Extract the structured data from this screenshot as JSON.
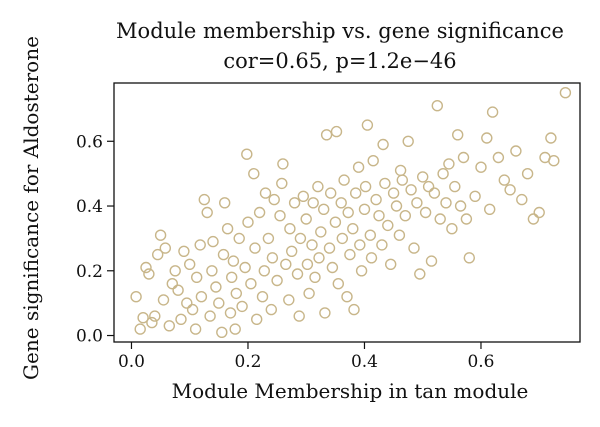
{
  "chart_data": {
    "type": "scatter",
    "title": "Module membership vs. gene significance",
    "subtitle": "cor=0.65, p=1.2e−46",
    "xlabel": "Module Membership in tan module",
    "ylabel": "Gene significance for Aldosterone",
    "xlim": [
      -0.03,
      0.77
    ],
    "ylim": [
      -0.02,
      0.78
    ],
    "xticks": [
      0.0,
      0.2,
      0.4,
      0.6
    ],
    "xtick_labels": [
      "0.0",
      "0.2",
      "0.4",
      "0.6"
    ],
    "yticks": [
      0.0,
      0.2,
      0.4,
      0.6
    ],
    "ytick_labels": [
      "0.0",
      "0.2",
      "0.4",
      "0.6"
    ],
    "grid": false,
    "marker": "open-circle",
    "color": "#c8b68a",
    "series": [
      {
        "points": [
          [
            0.008,
            0.12
          ],
          [
            0.015,
            0.02
          ],
          [
            0.02,
            0.055
          ],
          [
            0.025,
            0.21
          ],
          [
            0.03,
            0.19
          ],
          [
            0.035,
            0.04
          ],
          [
            0.04,
            0.06
          ],
          [
            0.045,
            0.25
          ],
          [
            0.05,
            0.31
          ],
          [
            0.055,
            0.11
          ],
          [
            0.058,
            0.27
          ],
          [
            0.065,
            0.03
          ],
          [
            0.07,
            0.16
          ],
          [
            0.075,
            0.2
          ],
          [
            0.08,
            0.14
          ],
          [
            0.085,
            0.05
          ],
          [
            0.09,
            0.26
          ],
          [
            0.095,
            0.1
          ],
          [
            0.1,
            0.22
          ],
          [
            0.105,
            0.08
          ],
          [
            0.11,
            0.02
          ],
          [
            0.112,
            0.18
          ],
          [
            0.118,
            0.28
          ],
          [
            0.12,
            0.12
          ],
          [
            0.125,
            0.42
          ],
          [
            0.13,
            0.38
          ],
          [
            0.135,
            0.06
          ],
          [
            0.138,
            0.2
          ],
          [
            0.14,
            0.29
          ],
          [
            0.145,
            0.15
          ],
          [
            0.15,
            0.1
          ],
          [
            0.155,
            0.01
          ],
          [
            0.158,
            0.25
          ],
          [
            0.16,
            0.41
          ],
          [
            0.165,
            0.33
          ],
          [
            0.17,
            0.07
          ],
          [
            0.172,
            0.18
          ],
          [
            0.175,
            0.23
          ],
          [
            0.178,
            0.02
          ],
          [
            0.18,
            0.13
          ],
          [
            0.185,
            0.3
          ],
          [
            0.19,
            0.09
          ],
          [
            0.195,
            0.21
          ],
          [
            0.198,
            0.56
          ],
          [
            0.2,
            0.35
          ],
          [
            0.205,
            0.16
          ],
          [
            0.21,
            0.5
          ],
          [
            0.212,
            0.27
          ],
          [
            0.215,
            0.05
          ],
          [
            0.22,
            0.38
          ],
          [
            0.225,
            0.12
          ],
          [
            0.228,
            0.2
          ],
          [
            0.23,
            0.44
          ],
          [
            0.235,
            0.3
          ],
          [
            0.24,
            0.08
          ],
          [
            0.242,
            0.24
          ],
          [
            0.245,
            0.42
          ],
          [
            0.25,
            0.17
          ],
          [
            0.255,
            0.37
          ],
          [
            0.258,
            0.47
          ],
          [
            0.26,
            0.53
          ],
          [
            0.265,
            0.22
          ],
          [
            0.27,
            0.11
          ],
          [
            0.272,
            0.33
          ],
          [
            0.275,
            0.26
          ],
          [
            0.28,
            0.41
          ],
          [
            0.285,
            0.19
          ],
          [
            0.288,
            0.06
          ],
          [
            0.29,
            0.3
          ],
          [
            0.295,
            0.43
          ],
          [
            0.3,
            0.36
          ],
          [
            0.302,
            0.22
          ],
          [
            0.305,
            0.13
          ],
          [
            0.31,
            0.28
          ],
          [
            0.312,
            0.41
          ],
          [
            0.315,
            0.18
          ],
          [
            0.32,
            0.46
          ],
          [
            0.322,
            0.24
          ],
          [
            0.325,
            0.32
          ],
          [
            0.33,
            0.39
          ],
          [
            0.332,
            0.07
          ],
          [
            0.335,
            0.62
          ],
          [
            0.34,
            0.27
          ],
          [
            0.342,
            0.44
          ],
          [
            0.345,
            0.21
          ],
          [
            0.35,
            0.35
          ],
          [
            0.352,
            0.63
          ],
          [
            0.355,
            0.16
          ],
          [
            0.36,
            0.41
          ],
          [
            0.362,
            0.3
          ],
          [
            0.365,
            0.48
          ],
          [
            0.37,
            0.12
          ],
          [
            0.372,
            0.38
          ],
          [
            0.375,
            0.25
          ],
          [
            0.38,
            0.33
          ],
          [
            0.382,
            0.08
          ],
          [
            0.385,
            0.44
          ],
          [
            0.39,
            0.52
          ],
          [
            0.392,
            0.28
          ],
          [
            0.395,
            0.2
          ],
          [
            0.4,
            0.39
          ],
          [
            0.402,
            0.46
          ],
          [
            0.405,
            0.65
          ],
          [
            0.41,
            0.31
          ],
          [
            0.412,
            0.24
          ],
          [
            0.415,
            0.54
          ],
          [
            0.42,
            0.42
          ],
          [
            0.425,
            0.37
          ],
          [
            0.43,
            0.28
          ],
          [
            0.432,
            0.59
          ],
          [
            0.435,
            0.47
          ],
          [
            0.44,
            0.34
          ],
          [
            0.445,
            0.22
          ],
          [
            0.45,
            0.44
          ],
          [
            0.455,
            0.4
          ],
          [
            0.46,
            0.31
          ],
          [
            0.462,
            0.51
          ],
          [
            0.465,
            0.48
          ],
          [
            0.47,
            0.37
          ],
          [
            0.475,
            0.6
          ],
          [
            0.48,
            0.45
          ],
          [
            0.485,
            0.27
          ],
          [
            0.49,
            0.41
          ],
          [
            0.495,
            0.19
          ],
          [
            0.5,
            0.49
          ],
          [
            0.505,
            0.38
          ],
          [
            0.51,
            0.46
          ],
          [
            0.515,
            0.23
          ],
          [
            0.52,
            0.44
          ],
          [
            0.525,
            0.71
          ],
          [
            0.53,
            0.36
          ],
          [
            0.535,
            0.5
          ],
          [
            0.54,
            0.41
          ],
          [
            0.545,
            0.53
          ],
          [
            0.55,
            0.33
          ],
          [
            0.555,
            0.46
          ],
          [
            0.56,
            0.62
          ],
          [
            0.565,
            0.4
          ],
          [
            0.57,
            0.55
          ],
          [
            0.575,
            0.36
          ],
          [
            0.58,
            0.24
          ],
          [
            0.59,
            0.43
          ],
          [
            0.6,
            0.52
          ],
          [
            0.61,
            0.61
          ],
          [
            0.615,
            0.39
          ],
          [
            0.62,
            0.69
          ],
          [
            0.63,
            0.55
          ],
          [
            0.64,
            0.48
          ],
          [
            0.65,
            0.45
          ],
          [
            0.66,
            0.57
          ],
          [
            0.67,
            0.42
          ],
          [
            0.68,
            0.5
          ],
          [
            0.69,
            0.36
          ],
          [
            0.7,
            0.38
          ],
          [
            0.71,
            0.55
          ],
          [
            0.72,
            0.61
          ],
          [
            0.725,
            0.54
          ],
          [
            0.745,
            0.75
          ]
        ]
      }
    ]
  }
}
